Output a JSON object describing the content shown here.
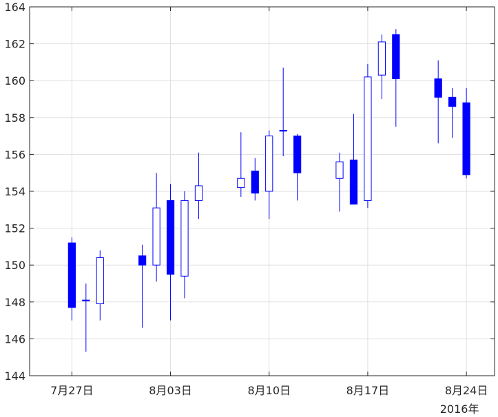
{
  "chart_data": {
    "type": "candlestick",
    "title": "",
    "xlabel": "",
    "ylabel": "",
    "x_tick_labels": [
      "7月27日",
      "8月03日",
      "8月10日",
      "8月17日",
      "8月24日"
    ],
    "x_secondary_label": "2016年",
    "xlim": [
      "2016-07-24",
      "2016-08-26"
    ],
    "ylim": [
      144,
      164
    ],
    "y_ticks": [
      144,
      146,
      148,
      150,
      152,
      154,
      156,
      158,
      160,
      162,
      164
    ],
    "grid": true,
    "colors": {
      "candle": "#0000ff",
      "axis": "#262626",
      "grid": "#dfdfdf"
    },
    "candles": [
      {
        "date": "2016-07-27",
        "open": 151.2,
        "high": 151.5,
        "low": 147.0,
        "close": 147.7
      },
      {
        "date": "2016-07-28",
        "open": 148.1,
        "high": 149.0,
        "low": 145.3,
        "close": 148.1
      },
      {
        "date": "2016-07-29",
        "open": 147.9,
        "high": 150.8,
        "low": 147.0,
        "close": 150.4
      },
      {
        "date": "2016-08-01",
        "open": 150.5,
        "high": 151.1,
        "low": 146.6,
        "close": 150.0
      },
      {
        "date": "2016-08-02",
        "open": 150.0,
        "high": 155.0,
        "low": 149.1,
        "close": 153.1
      },
      {
        "date": "2016-08-03",
        "open": 153.5,
        "high": 154.4,
        "low": 147.0,
        "close": 149.5
      },
      {
        "date": "2016-08-04",
        "open": 149.4,
        "high": 154.0,
        "low": 148.2,
        "close": 153.5
      },
      {
        "date": "2016-08-05",
        "open": 153.5,
        "high": 156.1,
        "low": 152.5,
        "close": 154.3
      },
      {
        "date": "2016-08-08",
        "open": 154.2,
        "high": 157.2,
        "low": 153.7,
        "close": 154.7
      },
      {
        "date": "2016-08-09",
        "open": 155.1,
        "high": 155.8,
        "low": 153.5,
        "close": 153.9
      },
      {
        "date": "2016-08-10",
        "open": 154.0,
        "high": 157.3,
        "low": 152.5,
        "close": 157.0
      },
      {
        "date": "2016-08-11",
        "open": 157.3,
        "high": 160.7,
        "low": 155.9,
        "close": 157.3
      },
      {
        "date": "2016-08-12",
        "open": 157.0,
        "high": 157.1,
        "low": 153.5,
        "close": 155.0
      },
      {
        "date": "2016-08-15",
        "open": 154.7,
        "high": 156.1,
        "low": 152.9,
        "close": 155.6
      },
      {
        "date": "2016-08-16",
        "open": 155.7,
        "high": 158.2,
        "low": 153.3,
        "close": 153.3
      },
      {
        "date": "2016-08-17",
        "open": 153.5,
        "high": 160.9,
        "low": 153.1,
        "close": 160.2
      },
      {
        "date": "2016-08-18",
        "open": 160.3,
        "high": 162.5,
        "low": 159.0,
        "close": 162.1
      },
      {
        "date": "2016-08-19",
        "open": 162.5,
        "high": 162.8,
        "low": 157.5,
        "close": 160.1
      },
      {
        "date": "2016-08-22",
        "open": 160.1,
        "high": 161.1,
        "low": 156.6,
        "close": 159.1
      },
      {
        "date": "2016-08-23",
        "open": 159.1,
        "high": 159.6,
        "low": 156.9,
        "close": 158.6
      },
      {
        "date": "2016-08-24",
        "open": 158.8,
        "high": 159.6,
        "low": 154.7,
        "close": 154.9
      }
    ]
  }
}
